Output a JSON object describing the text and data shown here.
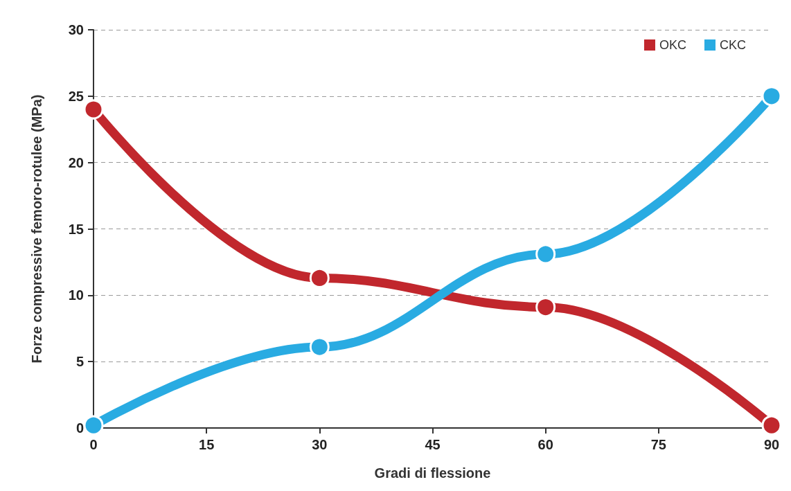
{
  "chart_data": {
    "type": "line",
    "xlabel": "Gradi di flessione",
    "ylabel": "Forze compressive femoro-rotulee (MPa)",
    "x": [
      0,
      30,
      60,
      90
    ],
    "series": [
      {
        "name": "OKC",
        "color": "#c1272d",
        "values": [
          24,
          11.3,
          9.1,
          0.2
        ]
      },
      {
        "name": "CKC",
        "color": "#29abe2",
        "values": [
          0.2,
          6.1,
          13.1,
          25
        ]
      }
    ],
    "xlim": [
      0,
      90
    ],
    "xticks": [
      0,
      15,
      30,
      45,
      60,
      75,
      90
    ],
    "ylim": [
      0,
      30
    ],
    "yticks": [
      0,
      5,
      10,
      15,
      20,
      25,
      30
    ],
    "grid": "y",
    "legend": "top right",
    "marker": "circle",
    "line_style": "solid"
  }
}
